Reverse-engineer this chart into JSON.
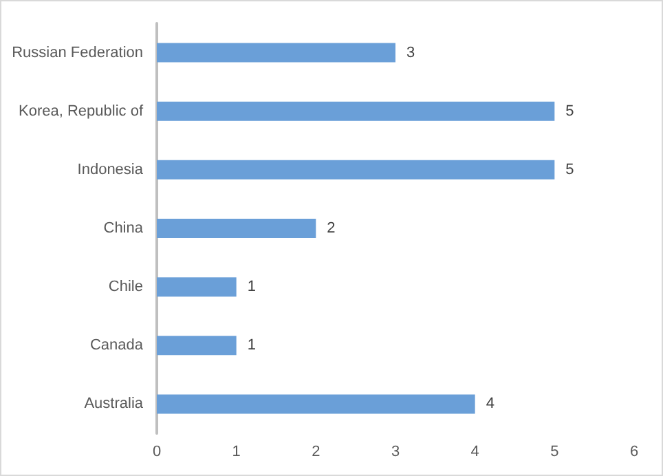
{
  "chart_data": {
    "type": "bar",
    "orientation": "horizontal",
    "categories": [
      "Russian Federation",
      "Korea, Republic of",
      "Indonesia",
      "China",
      "Chile",
      "Canada",
      "Australia"
    ],
    "values": [
      3,
      5,
      5,
      2,
      1,
      1,
      4
    ],
    "color": "#6a9fd8",
    "xlim": [
      0,
      6
    ],
    "xticks": [
      0,
      1,
      2,
      3,
      4,
      5,
      6
    ],
    "grid": false,
    "data_labels": true
  }
}
